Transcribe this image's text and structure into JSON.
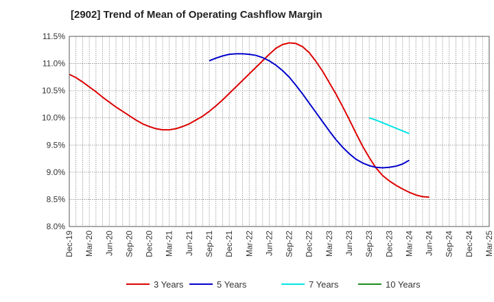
{
  "chart_data": {
    "type": "line",
    "title": "[2902]  Trend of Mean of Operating Cashflow Margin",
    "xlabel": "",
    "ylabel": "",
    "ylim": [
      8.0,
      11.5
    ],
    "y_ticks": [
      8.0,
      8.5,
      9.0,
      9.5,
      10.0,
      10.5,
      11.0,
      11.5
    ],
    "y_tick_labels": [
      "8.0%",
      "8.5%",
      "9.0%",
      "9.5%",
      "10.0%",
      "10.5%",
      "11.0%",
      "11.5%"
    ],
    "x_start_month": "Dec-19",
    "x_tick_labels": [
      "Dec-19",
      "Mar-20",
      "Jun-20",
      "Sep-20",
      "Dec-20",
      "Mar-21",
      "Jun-21",
      "Sep-21",
      "Dec-21",
      "Mar-22",
      "Jun-22",
      "Sep-22",
      "Dec-22",
      "Mar-23",
      "Jun-23",
      "Sep-23",
      "Dec-23",
      "Mar-24",
      "Jun-24",
      "Sep-24",
      "Dec-24",
      "Mar-25"
    ],
    "grid": true,
    "legend_position": "bottom",
    "series": [
      {
        "name": "3 Years",
        "color": "#dd0000",
        "start_month_index": 0,
        "values": [
          10.8,
          10.74,
          10.66,
          10.57,
          10.48,
          10.38,
          10.29,
          10.2,
          10.12,
          10.04,
          9.96,
          9.89,
          9.84,
          9.8,
          9.78,
          9.78,
          9.8,
          9.84,
          9.89,
          9.96,
          10.03,
          10.12,
          10.22,
          10.33,
          10.45,
          10.57,
          10.69,
          10.81,
          10.93,
          11.05,
          11.17,
          11.28,
          11.35,
          11.38,
          11.37,
          11.31,
          11.2,
          11.04,
          10.86,
          10.65,
          10.44,
          10.21,
          9.97,
          9.72,
          9.48,
          9.27,
          9.08,
          8.94,
          8.84,
          8.76,
          8.69,
          8.63,
          8.58,
          8.55,
          8.54
        ]
      },
      {
        "name": "5 Years",
        "color": "#0000cc",
        "start_month_index": 21,
        "values": [
          11.05,
          11.1,
          11.14,
          11.17,
          11.18,
          11.18,
          11.17,
          11.15,
          11.11,
          11.05,
          10.97,
          10.87,
          10.75,
          10.6,
          10.44,
          10.27,
          10.1,
          9.93,
          9.76,
          9.6,
          9.46,
          9.34,
          9.24,
          9.17,
          9.12,
          9.09,
          9.08,
          9.09,
          9.11,
          9.15,
          9.22
        ]
      },
      {
        "name": "7 Years",
        "color": "#00e5e5",
        "start_month_index": 45,
        "values": [
          10.0,
          9.96,
          9.91,
          9.86,
          9.81,
          9.76,
          9.71
        ]
      },
      {
        "name": "10 Years",
        "color": "#1a8c1a",
        "start_month_index": 0,
        "values": []
      }
    ]
  }
}
